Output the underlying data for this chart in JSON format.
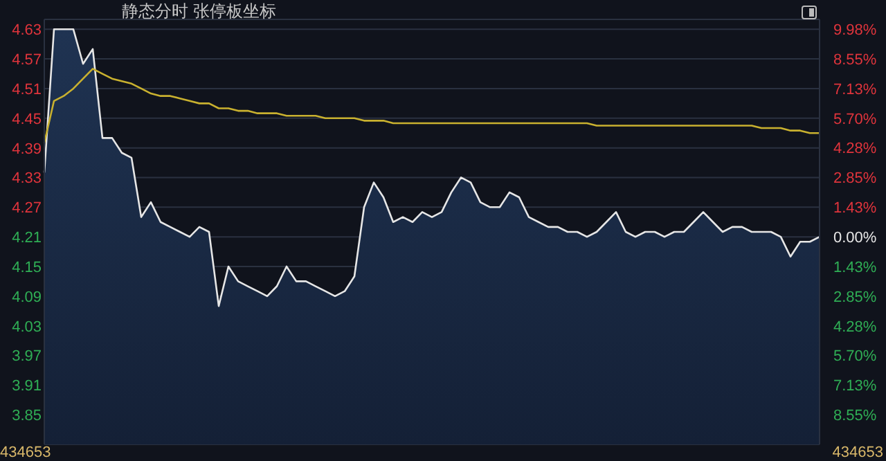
{
  "chart_data": {
    "type": "area",
    "title": "静态分时 张停板坐标",
    "categories": [
      null,
      null,
      null,
      null,
      null,
      null,
      null,
      null,
      null,
      null,
      null,
      null,
      null,
      null,
      null,
      null,
      null,
      null,
      null,
      null,
      null,
      null,
      null,
      null,
      null,
      null,
      null,
      null,
      null,
      null,
      null,
      null,
      null,
      null,
      null,
      null,
      null,
      null,
      null,
      null,
      null,
      null,
      null,
      null,
      null,
      null,
      null,
      null,
      null,
      null,
      null,
      null,
      null,
      null,
      null,
      null,
      null,
      null,
      null,
      null,
      null,
      null,
      null,
      null,
      null,
      null,
      null,
      null,
      null,
      null,
      null,
      null,
      null,
      null,
      null,
      null,
      null,
      null,
      null,
      null,
      null
    ],
    "ylim": [
      3.79,
      4.65
    ],
    "yticks": [
      4.63,
      4.57,
      4.51,
      4.45,
      4.39,
      4.33,
      4.27,
      4.21,
      4.15,
      4.09,
      4.03,
      3.97,
      3.91,
      3.85
    ],
    "y2lim": [
      -9.98,
      10.45
    ],
    "y2ticks": [
      {
        "value": 9.98,
        "label": "9.98%"
      },
      {
        "value": 8.55,
        "label": "8.55%"
      },
      {
        "value": 7.13,
        "label": "7.13%"
      },
      {
        "value": 5.7,
        "label": "5.70%"
      },
      {
        "value": 4.28,
        "label": "4.28%"
      },
      {
        "value": 2.85,
        "label": "2.85%"
      },
      {
        "value": 1.43,
        "label": "1.43%"
      },
      {
        "value": 0,
        "label": "0.00%"
      },
      {
        "value": -1.43,
        "label": "1.43%"
      },
      {
        "value": -2.85,
        "label": "2.85%"
      },
      {
        "value": -4.28,
        "label": "4.28%"
      },
      {
        "value": -5.7,
        "label": "5.70%"
      },
      {
        "value": -7.13,
        "label": "7.13%"
      },
      {
        "value": -8.55,
        "label": "8.55%"
      }
    ],
    "grid": "y",
    "tick_labels": "y",
    "annotations": [
      "434653",
      "434653"
    ],
    "series": [
      {
        "color": "#e6e6e6",
        "values": [
          4.34,
          4.63,
          4.63,
          4.63,
          4.56,
          4.59,
          4.41,
          4.41,
          4.38,
          4.37,
          4.25,
          4.28,
          4.24,
          4.23,
          4.22,
          4.21,
          4.23,
          4.22,
          4.07,
          4.15,
          4.12,
          4.11,
          4.1,
          4.09,
          4.11,
          4.15,
          4.12,
          4.12,
          4.11,
          4.1,
          4.09,
          4.1,
          4.13,
          4.27,
          4.32,
          4.29,
          4.24,
          4.25,
          4.24,
          4.26,
          4.25,
          4.26,
          4.3,
          4.33,
          4.32,
          4.28,
          4.27,
          4.27,
          4.3,
          4.29,
          4.25,
          4.24,
          4.23,
          4.23,
          4.22,
          4.22,
          4.21,
          4.22,
          4.24,
          4.26,
          4.22,
          4.21,
          4.22,
          4.22,
          4.21,
          4.22,
          4.22,
          4.24,
          4.26,
          4.24,
          4.22,
          4.23,
          4.23,
          4.22,
          4.22,
          4.22,
          4.21,
          4.17,
          4.2,
          4.2,
          4.21
        ]
      },
      {
        "type": "line",
        "color": "#c9b12f",
        "values": [
          4.4,
          4.485,
          4.495,
          4.51,
          4.53,
          4.55,
          4.54,
          4.53,
          4.525,
          4.52,
          4.51,
          4.5,
          4.495,
          4.495,
          4.49,
          4.485,
          4.48,
          4.48,
          4.47,
          4.47,
          4.465,
          4.465,
          4.46,
          4.46,
          4.46,
          4.455,
          4.455,
          4.455,
          4.455,
          4.45,
          4.45,
          4.45,
          4.45,
          4.445,
          4.445,
          4.445,
          4.44,
          4.44,
          4.44,
          4.44,
          4.44,
          4.44,
          4.44,
          4.44,
          4.44,
          4.44,
          4.44,
          4.44,
          4.44,
          4.44,
          4.44,
          4.44,
          4.44,
          4.44,
          4.44,
          4.44,
          4.44,
          4.435,
          4.435,
          4.435,
          4.435,
          4.435,
          4.435,
          4.435,
          4.435,
          4.435,
          4.435,
          4.435,
          4.435,
          4.435,
          4.435,
          4.435,
          4.435,
          4.435,
          4.43,
          4.43,
          4.43,
          4.425,
          4.425,
          4.42,
          4.42
        ]
      }
    ]
  }
}
